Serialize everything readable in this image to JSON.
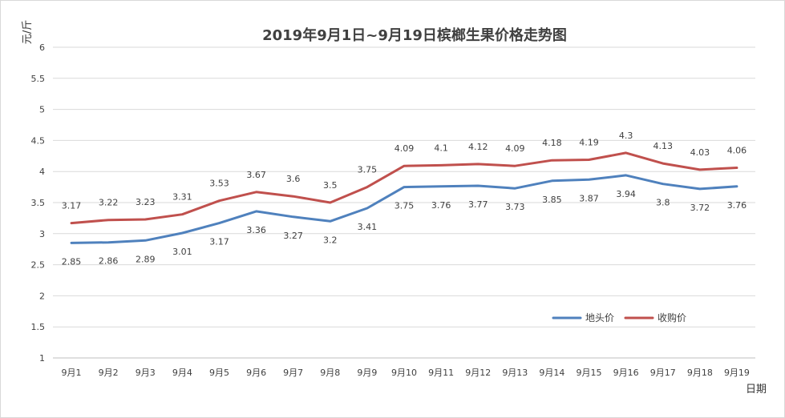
{
  "chart_data": {
    "type": "line",
    "title": "2019年9月1日~9月19日槟榔生果价格走势图",
    "xlabel": "日期",
    "ylabel": "元/斤",
    "ylim": [
      1,
      6
    ],
    "yticks": [
      "1",
      "1.5",
      "2",
      "2.5",
      "3",
      "3.5",
      "4",
      "4.5",
      "5",
      "5.5",
      "6"
    ],
    "grid": true,
    "legend_position": "lower-right",
    "categories": [
      "9月1",
      "9月2",
      "9月3",
      "9月4",
      "9月5",
      "9月6",
      "9月7",
      "9月8",
      "9月9",
      "9月10",
      "9月11",
      "9月12",
      "9月13",
      "9月14",
      "9月15",
      "9月16",
      "9月17",
      "9月18",
      "9月19"
    ],
    "series": [
      {
        "name": "地头价",
        "color": "#4f81bd",
        "values": [
          2.85,
          2.86,
          2.89,
          3.01,
          3.17,
          3.36,
          3.27,
          3.2,
          3.41,
          3.75,
          3.76,
          3.77,
          3.73,
          3.85,
          3.87,
          3.94,
          3.8,
          3.72,
          3.76
        ],
        "labels": [
          "2.85",
          "2.86",
          "2.89",
          "3.01",
          "3.17",
          "3.36",
          "3.27",
          "3.2",
          "3.41",
          "3.75",
          "3.76",
          "3.77",
          "3.73",
          "3.85",
          "3.87",
          "3.94",
          "3.8",
          "3.72",
          "3.76"
        ]
      },
      {
        "name": "收购价",
        "color": "#c0504d",
        "values": [
          3.17,
          3.22,
          3.23,
          3.31,
          3.53,
          3.67,
          3.6,
          3.5,
          3.75,
          4.09,
          4.1,
          4.12,
          4.09,
          4.18,
          4.19,
          4.3,
          4.13,
          4.03,
          4.06
        ],
        "labels": [
          "3.17",
          "3.22",
          "3.23",
          "3.31",
          "3.53",
          "3.67",
          "3.6",
          "3.5",
          "3.75",
          "4.09",
          "4.1",
          "4.12",
          "4.09",
          "4.18",
          "4.19",
          "4.3",
          "4.13",
          "4.03",
          "4.06"
        ]
      }
    ]
  }
}
